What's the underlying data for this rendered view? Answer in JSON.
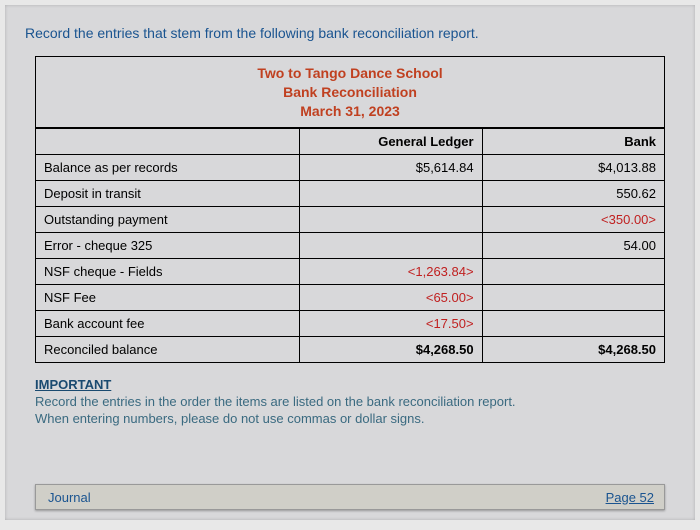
{
  "instruction": "Record the entries that stem from the following bank reconciliation report.",
  "header": {
    "school": "Two to Tango Dance School",
    "title": "Bank Reconciliation",
    "date": "March 31, 2023"
  },
  "columns": {
    "label": "",
    "gl": "General Ledger",
    "bank": "Bank"
  },
  "rows": [
    {
      "label": "Balance as per records",
      "gl": "$5,614.84",
      "bank": "$4,013.88",
      "gl_neg": false,
      "bank_neg": false,
      "bold": false
    },
    {
      "label": "Deposit in transit",
      "gl": "",
      "bank": "550.62",
      "gl_neg": false,
      "bank_neg": false,
      "bold": false
    },
    {
      "label": "Outstanding payment",
      "gl": "",
      "bank": "<350.00>",
      "gl_neg": false,
      "bank_neg": true,
      "bold": false
    },
    {
      "label": "Error - cheque 325",
      "gl": "",
      "bank": "54.00",
      "gl_neg": false,
      "bank_neg": false,
      "bold": false
    },
    {
      "label": "NSF cheque - Fields",
      "gl": "<1,263.84>",
      "bank": "",
      "gl_neg": true,
      "bank_neg": false,
      "bold": false
    },
    {
      "label": "NSF Fee",
      "gl": "<65.00>",
      "bank": "",
      "gl_neg": true,
      "bank_neg": false,
      "bold": false
    },
    {
      "label": "Bank account fee",
      "gl": "<17.50>",
      "bank": "",
      "gl_neg": true,
      "bank_neg": false,
      "bold": false
    },
    {
      "label": "Reconciled balance",
      "gl": "$4,268.50",
      "bank": "$4,268.50",
      "gl_neg": false,
      "bank_neg": false,
      "bold": true
    }
  ],
  "important": {
    "header": "IMPORTANT",
    "line1": "Record the entries in the order the items are listed on the bank reconciliation report.",
    "line2": "When entering numbers, please do not use commas or dollar signs."
  },
  "tab": {
    "label": "Journal",
    "page": "Page 52"
  },
  "style": {
    "bg": "#d8d8da",
    "accent": "#c04020",
    "link": "#1a5490",
    "neg": "#c02020",
    "border": "#000000"
  }
}
